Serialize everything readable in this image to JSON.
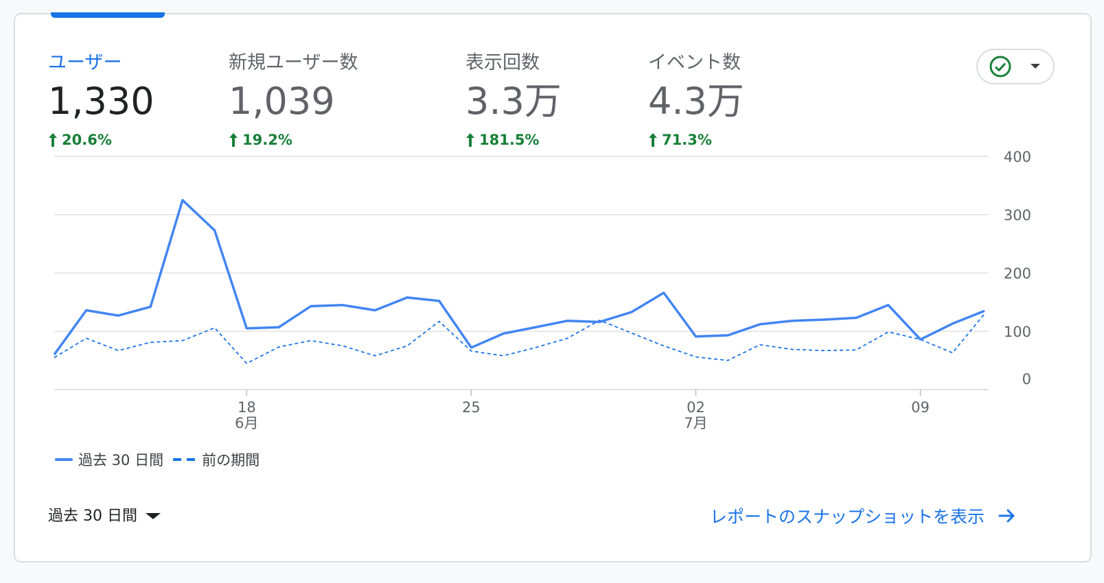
{
  "metrics": [
    {
      "label": "ユーザー",
      "value": "1,330",
      "change": "20.6%",
      "active": true
    },
    {
      "label": "新規ユーザー数",
      "value": "1,039",
      "change": "19.2%",
      "active": false
    },
    {
      "label": "表示回数",
      "value": "3.3万",
      "change": "181.5%",
      "active": false
    },
    {
      "label": "イベント数",
      "value": "4.3万",
      "change": "71.3%",
      "active": false
    }
  ],
  "compare_button": {
    "icon": "check-circle-icon",
    "dropdown_icon": "caret-down-icon"
  },
  "chart_data": {
    "type": "line",
    "x_tick_labels": [
      {
        "day": "18",
        "month": "6月"
      },
      {
        "day": "25",
        "month": ""
      },
      {
        "day": "02",
        "month": "7月"
      },
      {
        "day": "09",
        "month": ""
      }
    ],
    "y_ticks": [
      "400",
      "300",
      "200",
      "100",
      "0"
    ],
    "ylim": [
      0,
      400
    ],
    "series": [
      {
        "name": "過去 30 日間",
        "style": "solid",
        "color": "#4285f4",
        "values": [
          60,
          136,
          127,
          142,
          325,
          273,
          105,
          107,
          143,
          145,
          136,
          158,
          152,
          72,
          96,
          107,
          118,
          116,
          133,
          166,
          91,
          93,
          112,
          118,
          120,
          123,
          145,
          86,
          113,
          135
        ]
      },
      {
        "name": "前の期間",
        "style": "dashed",
        "color": "#1a73e8",
        "values": [
          55,
          88,
          67,
          81,
          84,
          106,
          45,
          73,
          84,
          75,
          58,
          75,
          117,
          66,
          58,
          72,
          88,
          119,
          97,
          75,
          56,
          50,
          77,
          69,
          67,
          68,
          99,
          86,
          63,
          130
        ]
      }
    ]
  },
  "legend": {
    "current": "過去 30 日間",
    "previous": "前の期間"
  },
  "footer": {
    "period_label": "過去 30 日間",
    "report_link": "レポートのスナップショットを表示"
  }
}
